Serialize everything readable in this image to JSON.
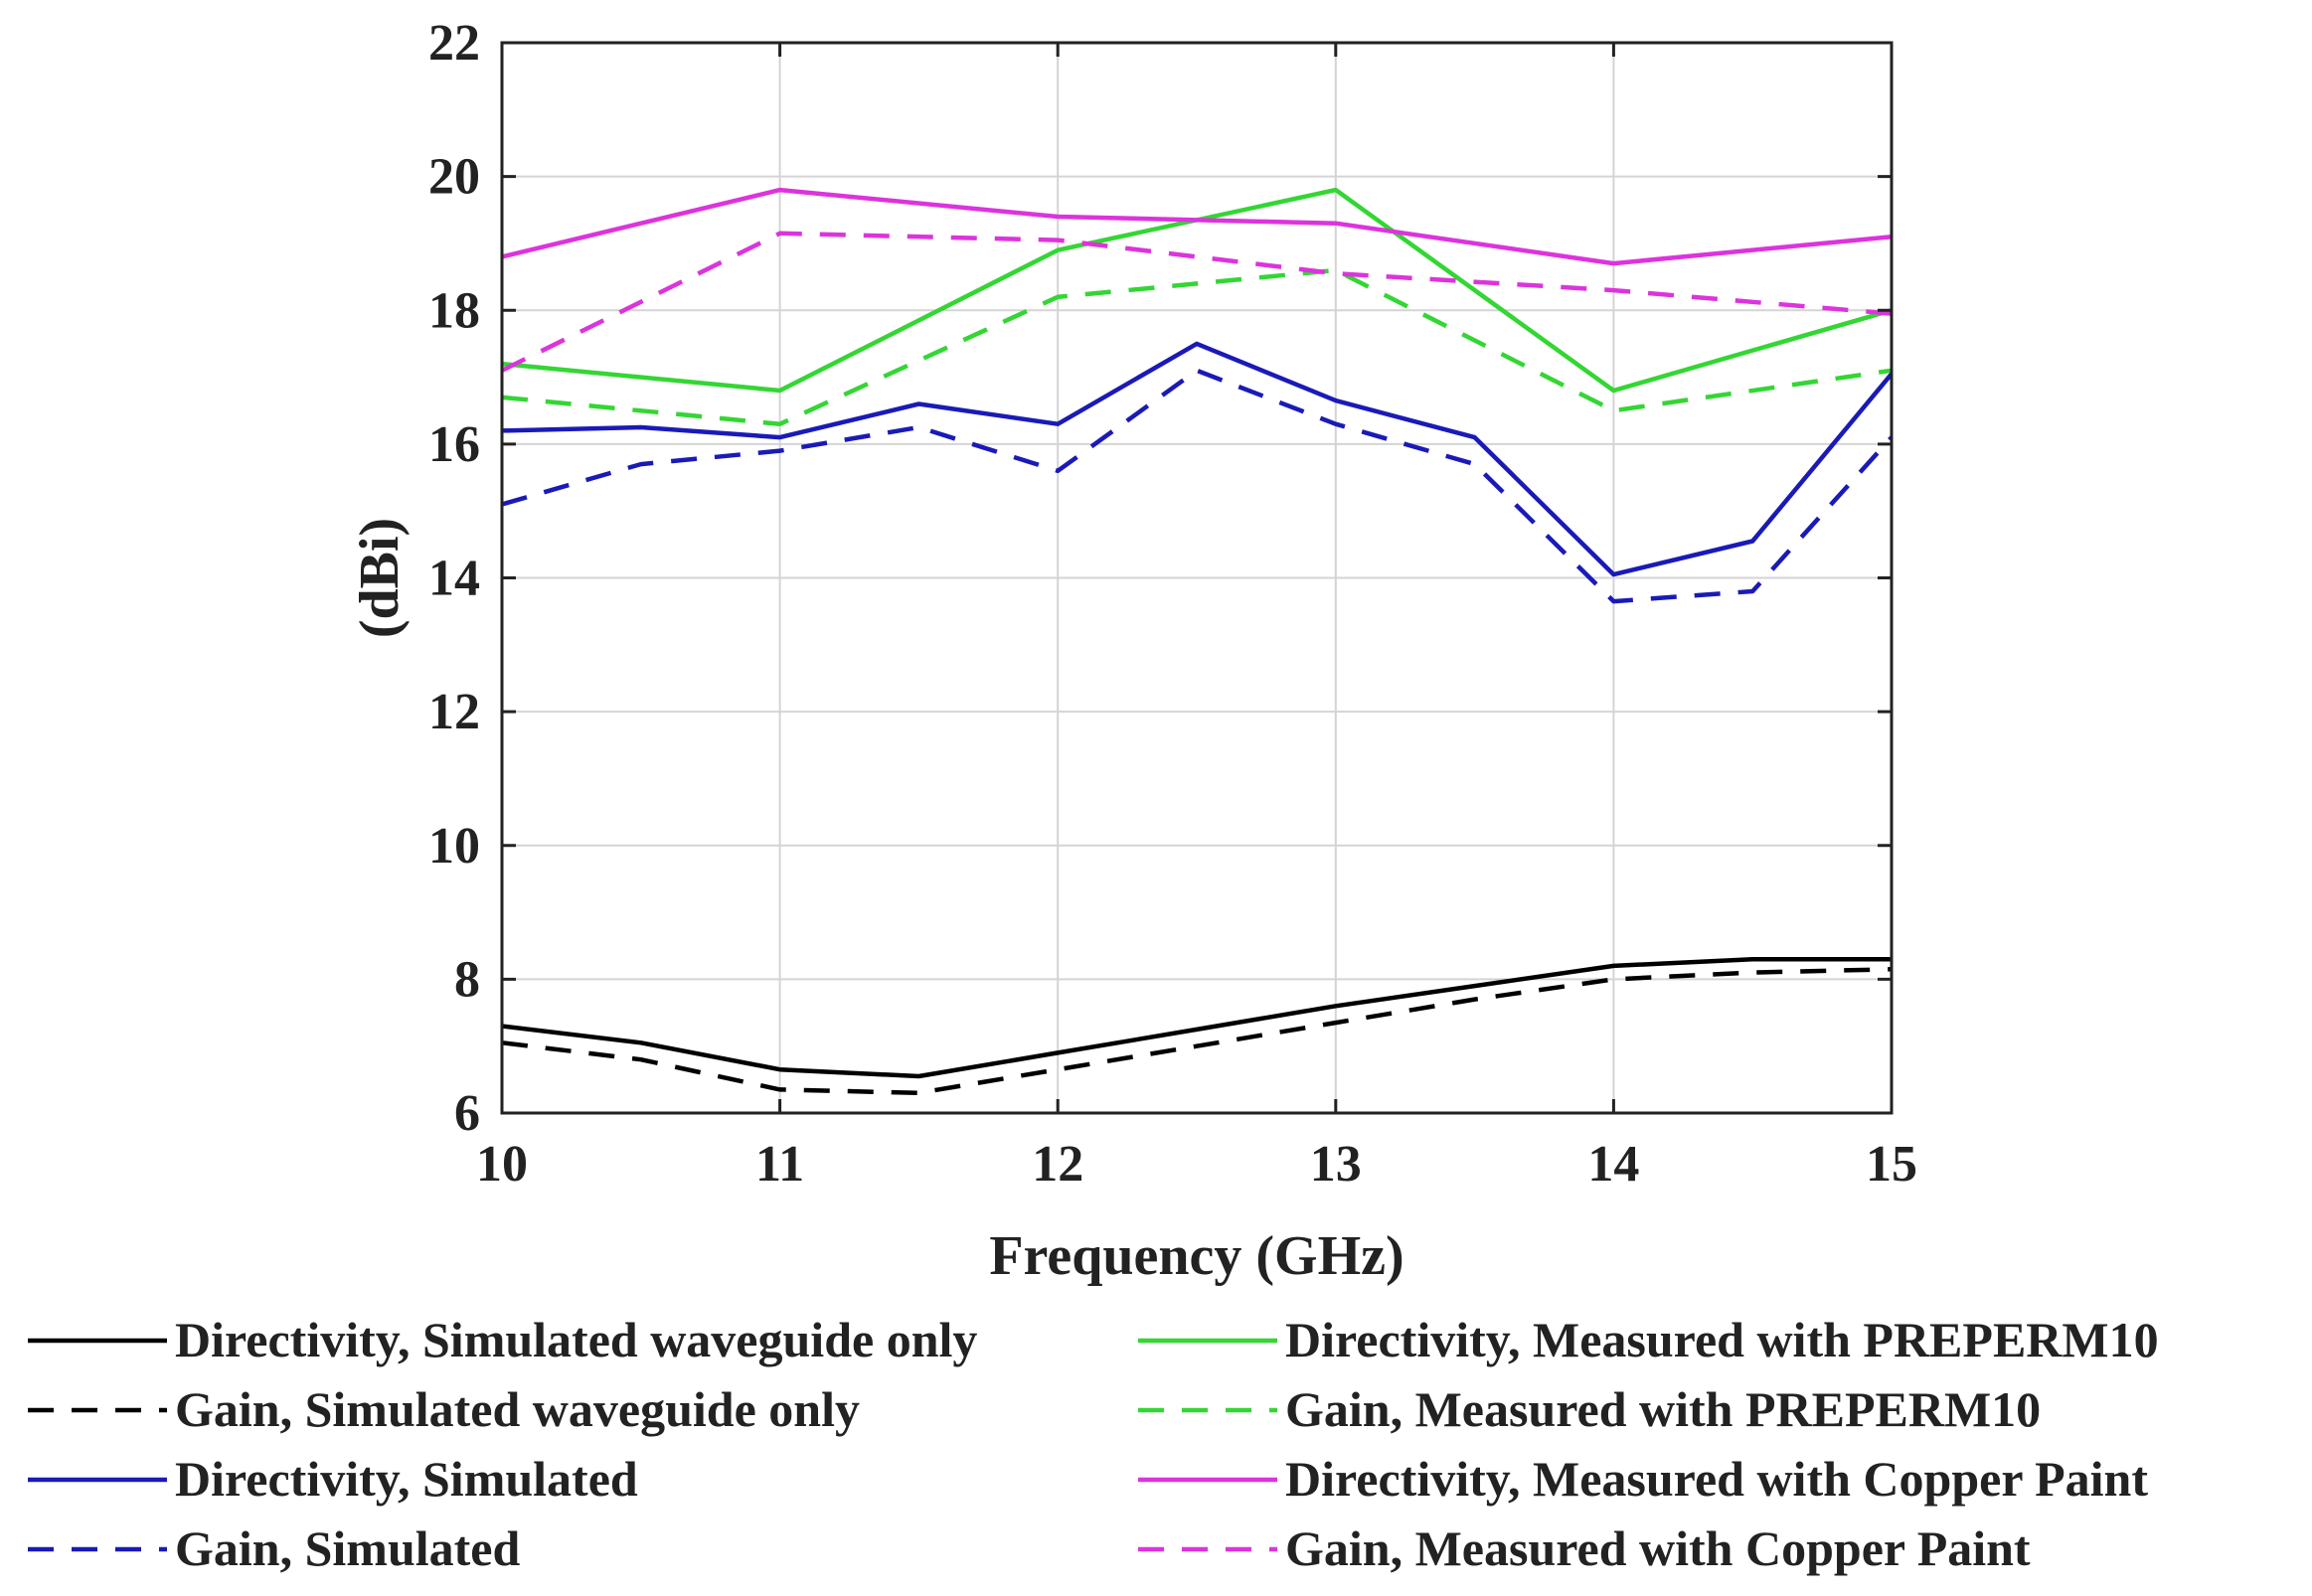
{
  "chart_data": {
    "type": "line",
    "title": "",
    "xlabel": "Frequency (GHz)",
    "ylabel": "(dBi)",
    "xlim": [
      10,
      15
    ],
    "ylim": [
      6,
      22
    ],
    "xticks": [
      10,
      11,
      12,
      13,
      14,
      15
    ],
    "yticks": [
      6,
      8,
      10,
      12,
      14,
      16,
      18,
      20,
      22
    ],
    "grid": true,
    "legend_position": "bottom",
    "x": [
      10,
      10.5,
      11,
      11.5,
      12,
      12.5,
      13,
      13.5,
      14,
      14.5,
      15
    ],
    "series": [
      {
        "name": "Directivity, Simulated waveguide only",
        "color": "#000000",
        "dash": "solid",
        "values": [
          7.3,
          7.05,
          6.65,
          6.55,
          6.9,
          7.25,
          7.6,
          7.9,
          8.2,
          8.3,
          8.3
        ]
      },
      {
        "name": "Gain, Simulated waveguide only",
        "color": "#000000",
        "dash": "dashed",
        "values": [
          7.05,
          6.8,
          6.35,
          6.3,
          6.65,
          7.0,
          7.35,
          7.7,
          8.0,
          8.1,
          8.15
        ]
      },
      {
        "name": "Directivity, Simulated",
        "color": "#1a1ab8",
        "dash": "solid",
        "values": [
          16.2,
          16.25,
          16.1,
          16.6,
          16.3,
          17.5,
          16.65,
          16.1,
          14.05,
          14.55,
          17.05
        ]
      },
      {
        "name": "Gain, Simulated",
        "color": "#1a1ab8",
        "dash": "dashed",
        "values": [
          15.1,
          15.7,
          15.9,
          16.25,
          15.6,
          17.1,
          16.3,
          15.7,
          13.65,
          13.8,
          16.1
        ]
      },
      {
        "name": "Directivity, Measured with PREPERM10",
        "color": "#33d633",
        "dash": "solid",
        "values": [
          17.2,
          null,
          16.8,
          null,
          18.9,
          null,
          19.8,
          null,
          16.8,
          null,
          18.0
        ]
      },
      {
        "name": "Gain, Measured with PREPERM10",
        "color": "#33d633",
        "dash": "dashed",
        "values": [
          16.7,
          null,
          16.3,
          null,
          18.2,
          null,
          18.6,
          null,
          16.5,
          null,
          17.1
        ]
      },
      {
        "name": "Directivity, Measured with Copper Paint",
        "color": "#dd33dd",
        "dash": "solid",
        "values": [
          18.8,
          null,
          19.8,
          null,
          19.4,
          null,
          19.3,
          null,
          18.7,
          null,
          19.1
        ]
      },
      {
        "name": "Gain, Measured with Copper Paint",
        "color": "#dd33dd",
        "dash": "dashed",
        "values": [
          17.1,
          null,
          19.15,
          null,
          19.05,
          null,
          18.55,
          null,
          18.3,
          null,
          17.95
        ]
      }
    ]
  }
}
